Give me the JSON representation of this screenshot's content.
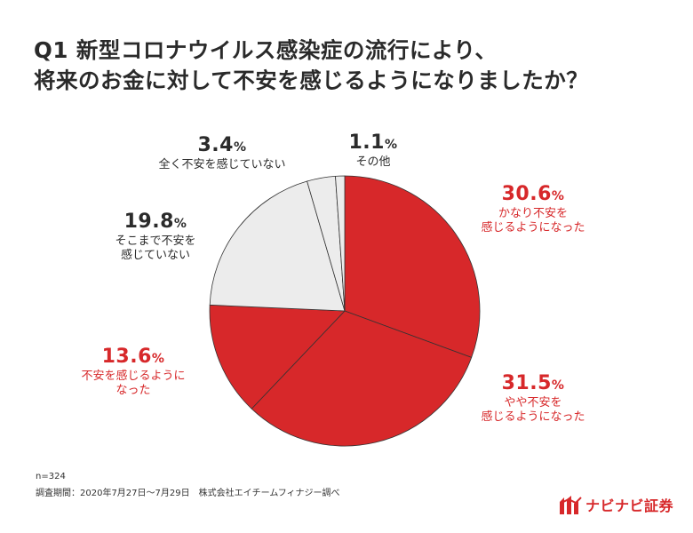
{
  "title": {
    "line1": "Q1 新型コロナウイルス感染症の流行により、",
    "line2": "将来のお金に対して不安を感じるようになりましたか？"
  },
  "chart_data": {
    "type": "pie",
    "unit": "%",
    "slices": [
      {
        "label": "かなり不安を感じるようになった",
        "line1": "かなり不安を",
        "line2": "感じるようになった",
        "value": 30.6,
        "color": "#d7282a"
      },
      {
        "label": "やや不安を感じるようになった",
        "line1": "やや不安を",
        "line2": "感じるようになった",
        "value": 31.5,
        "color": "#d7282a"
      },
      {
        "label": "不安を感じるようになった",
        "line1": "不安を感じるように",
        "line2": "なった",
        "value": 13.6,
        "color": "#d7282a"
      },
      {
        "label": "そこまで不安を感じていない",
        "line1": "そこまで不安を",
        "line2": "感じていない",
        "value": 19.8,
        "color": "#ececec"
      },
      {
        "label": "全く不安を感じていない",
        "line1": "全く不安を感じていない",
        "line2": "",
        "value": 3.4,
        "color": "#ececec"
      },
      {
        "label": "その他",
        "line1": "その他",
        "line2": "",
        "value": 1.1,
        "color": "#ececec"
      }
    ]
  },
  "notes": {
    "n": "n=324",
    "survey": "調査期間：2020年7月27日〜7月29日　株式会社エイチームフィナジー調べ"
  },
  "logo": {
    "text": "ナビナビ証券",
    "icon": "navinavi-logo-icon",
    "color": "#d7282a"
  }
}
